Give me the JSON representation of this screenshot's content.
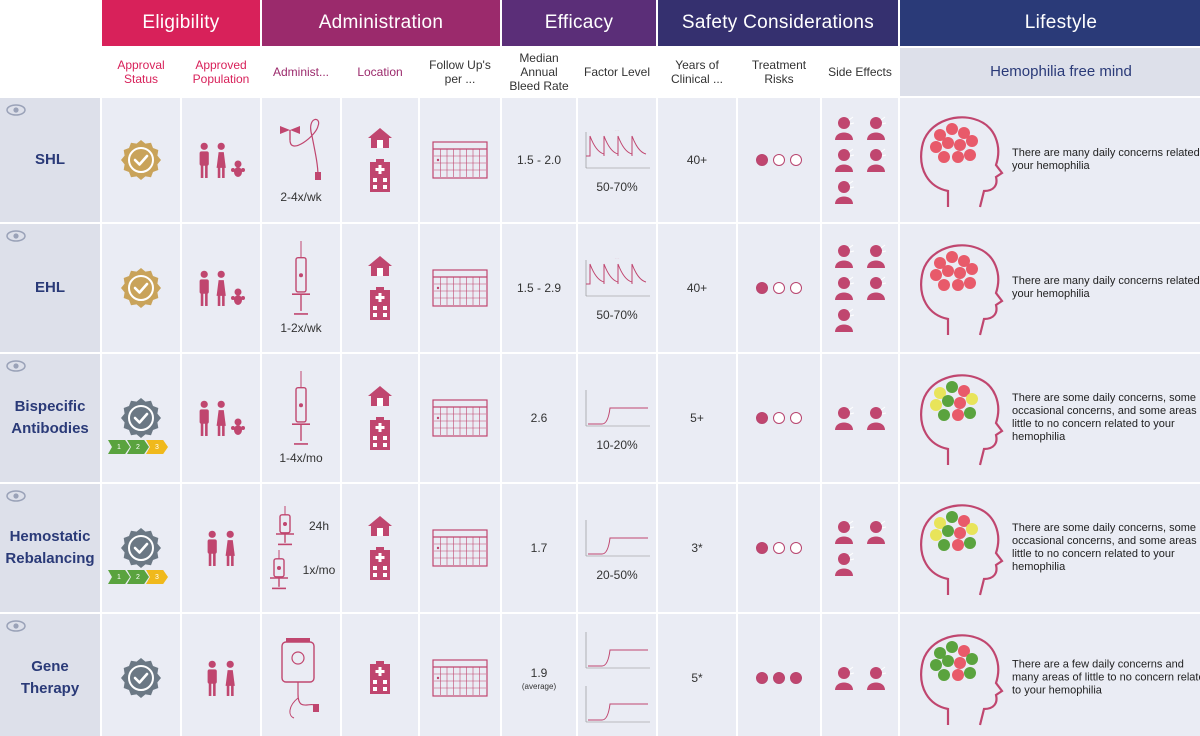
{
  "colors": {
    "eligibility": "#d8215a",
    "administration": "#9b2a6c",
    "efficacy": "#5b2e78",
    "safety": "#35306f",
    "lifestyle": "#2a3a78",
    "icon": "#c0466f",
    "cell_bg": "#eaecf4",
    "approved_gold": "#c9a35a",
    "approved_gray": "#6b7884"
  },
  "groups": {
    "eligibility": "Eligibility",
    "administration": "Administration",
    "efficacy": "Efficacy",
    "safety": "Safety Considerations",
    "lifestyle": "Lifestyle"
  },
  "columns": {
    "approval_status": "Approval Status",
    "approved_population": "Approved Population",
    "administration": "Administ...",
    "location": "Location",
    "follow_up": "Follow Up's per ...",
    "median_abr": "Median Annual Bleed Rate",
    "factor_level": "Factor Level",
    "years_clinical": "Years of Clinical ...",
    "treatment_risks": "Treatment Risks",
    "side_effects": "Side Effects",
    "lifestyle": "Hemophilia free mind"
  },
  "rows": [
    {
      "name": "SHL",
      "approval_icon": "approved-gold-badge-icon",
      "population_icon": "adult-child-infant-icon",
      "administration": "2-4x/wk",
      "admin_icon": "butterfly-needle-icon",
      "location_icons": [
        "home-icon",
        "hospital-icon"
      ],
      "follow_up_icon": "calendar-icon",
      "abr": "1.5 - 2.0",
      "abr_note": "",
      "factor_level": "50-70%",
      "years": "40+",
      "risk_filled": 1,
      "side_effect_icons": [
        "allergy-icon",
        "cough-icon",
        "headache-icon",
        "inhibitor-icon",
        "joint-pain-icon"
      ],
      "lifestyle_text": "There are many daily concerns related to your hemophilia"
    },
    {
      "name": "EHL",
      "approval_icon": "approved-gold-badge-icon",
      "population_icon": "adult-child-infant-icon",
      "administration": "1-2x/wk",
      "admin_icon": "syringe-icon",
      "location_icons": [
        "home-icon",
        "hospital-icon"
      ],
      "follow_up_icon": "calendar-icon",
      "abr": "1.5 - 2.9",
      "abr_note": "",
      "factor_level": "50-70%",
      "years": "40+",
      "risk_filled": 1,
      "side_effect_icons": [
        "allergy-icon",
        "cough-icon",
        "headache-icon",
        "inhibitor-icon",
        "joint-pain-icon"
      ],
      "lifestyle_text": "There are many daily concerns related to your hemophilia"
    },
    {
      "name": "Bispecific Antibodies",
      "approval_icon": "approved-gray-badge-icon",
      "population_icon": "adult-child-infant-icon",
      "administration": "1-4x/mo",
      "admin_icon": "syringe-icon",
      "location_icons": [
        "home-icon",
        "hospital-icon"
      ],
      "follow_up_icon": "calendar-icon",
      "abr": "2.6",
      "abr_note": "",
      "factor_level": "10-20%",
      "years": "5+",
      "risk_filled": 1,
      "side_effect_icons": [
        "headache-icon",
        "injection-site-icon"
      ],
      "lifestyle_text": "There are some daily concerns, some occasional concerns, and some areas of little to no concern related to your hemophilia"
    },
    {
      "name": "Hemostatic Rebalancing",
      "approval_icon": "approved-gray-badge-icon",
      "population_icon": "adult-child-icon",
      "administration": "24h",
      "administration_2": "1x/mo",
      "admin_icon": "syringe-icon",
      "location_icons": [
        "home-icon",
        "hospital-icon"
      ],
      "follow_up_icon": "calendar-icon",
      "abr": "1.7",
      "abr_note": "",
      "factor_level": "20-50%",
      "years": "3*",
      "risk_filled": 1,
      "side_effect_icons": [
        "clot-icon",
        "cough-icon",
        "headache-icon"
      ],
      "lifestyle_text": "There are some daily concerns, some occasional concerns, and some areas of little to no concern related to your hemophilia"
    },
    {
      "name": "Gene Therapy",
      "approval_icon": "approved-gray-badge-icon",
      "population_icon": "adult-icon",
      "administration": "",
      "admin_icon": "iv-bag-icon",
      "location_icons": [
        "hospital-icon"
      ],
      "follow_up_icon": "calendar-icon",
      "abr": "1.9",
      "abr_note": "(average)",
      "factor_level": "",
      "years": "5*",
      "risk_filled": 3,
      "side_effect_icons": [
        "headache-icon",
        "liver-icon"
      ],
      "lifestyle_text": "There are a few daily concerns and many areas of little to no concern related to your hemophilia"
    }
  ],
  "progress_steps": [
    "1",
    "2",
    "3"
  ]
}
